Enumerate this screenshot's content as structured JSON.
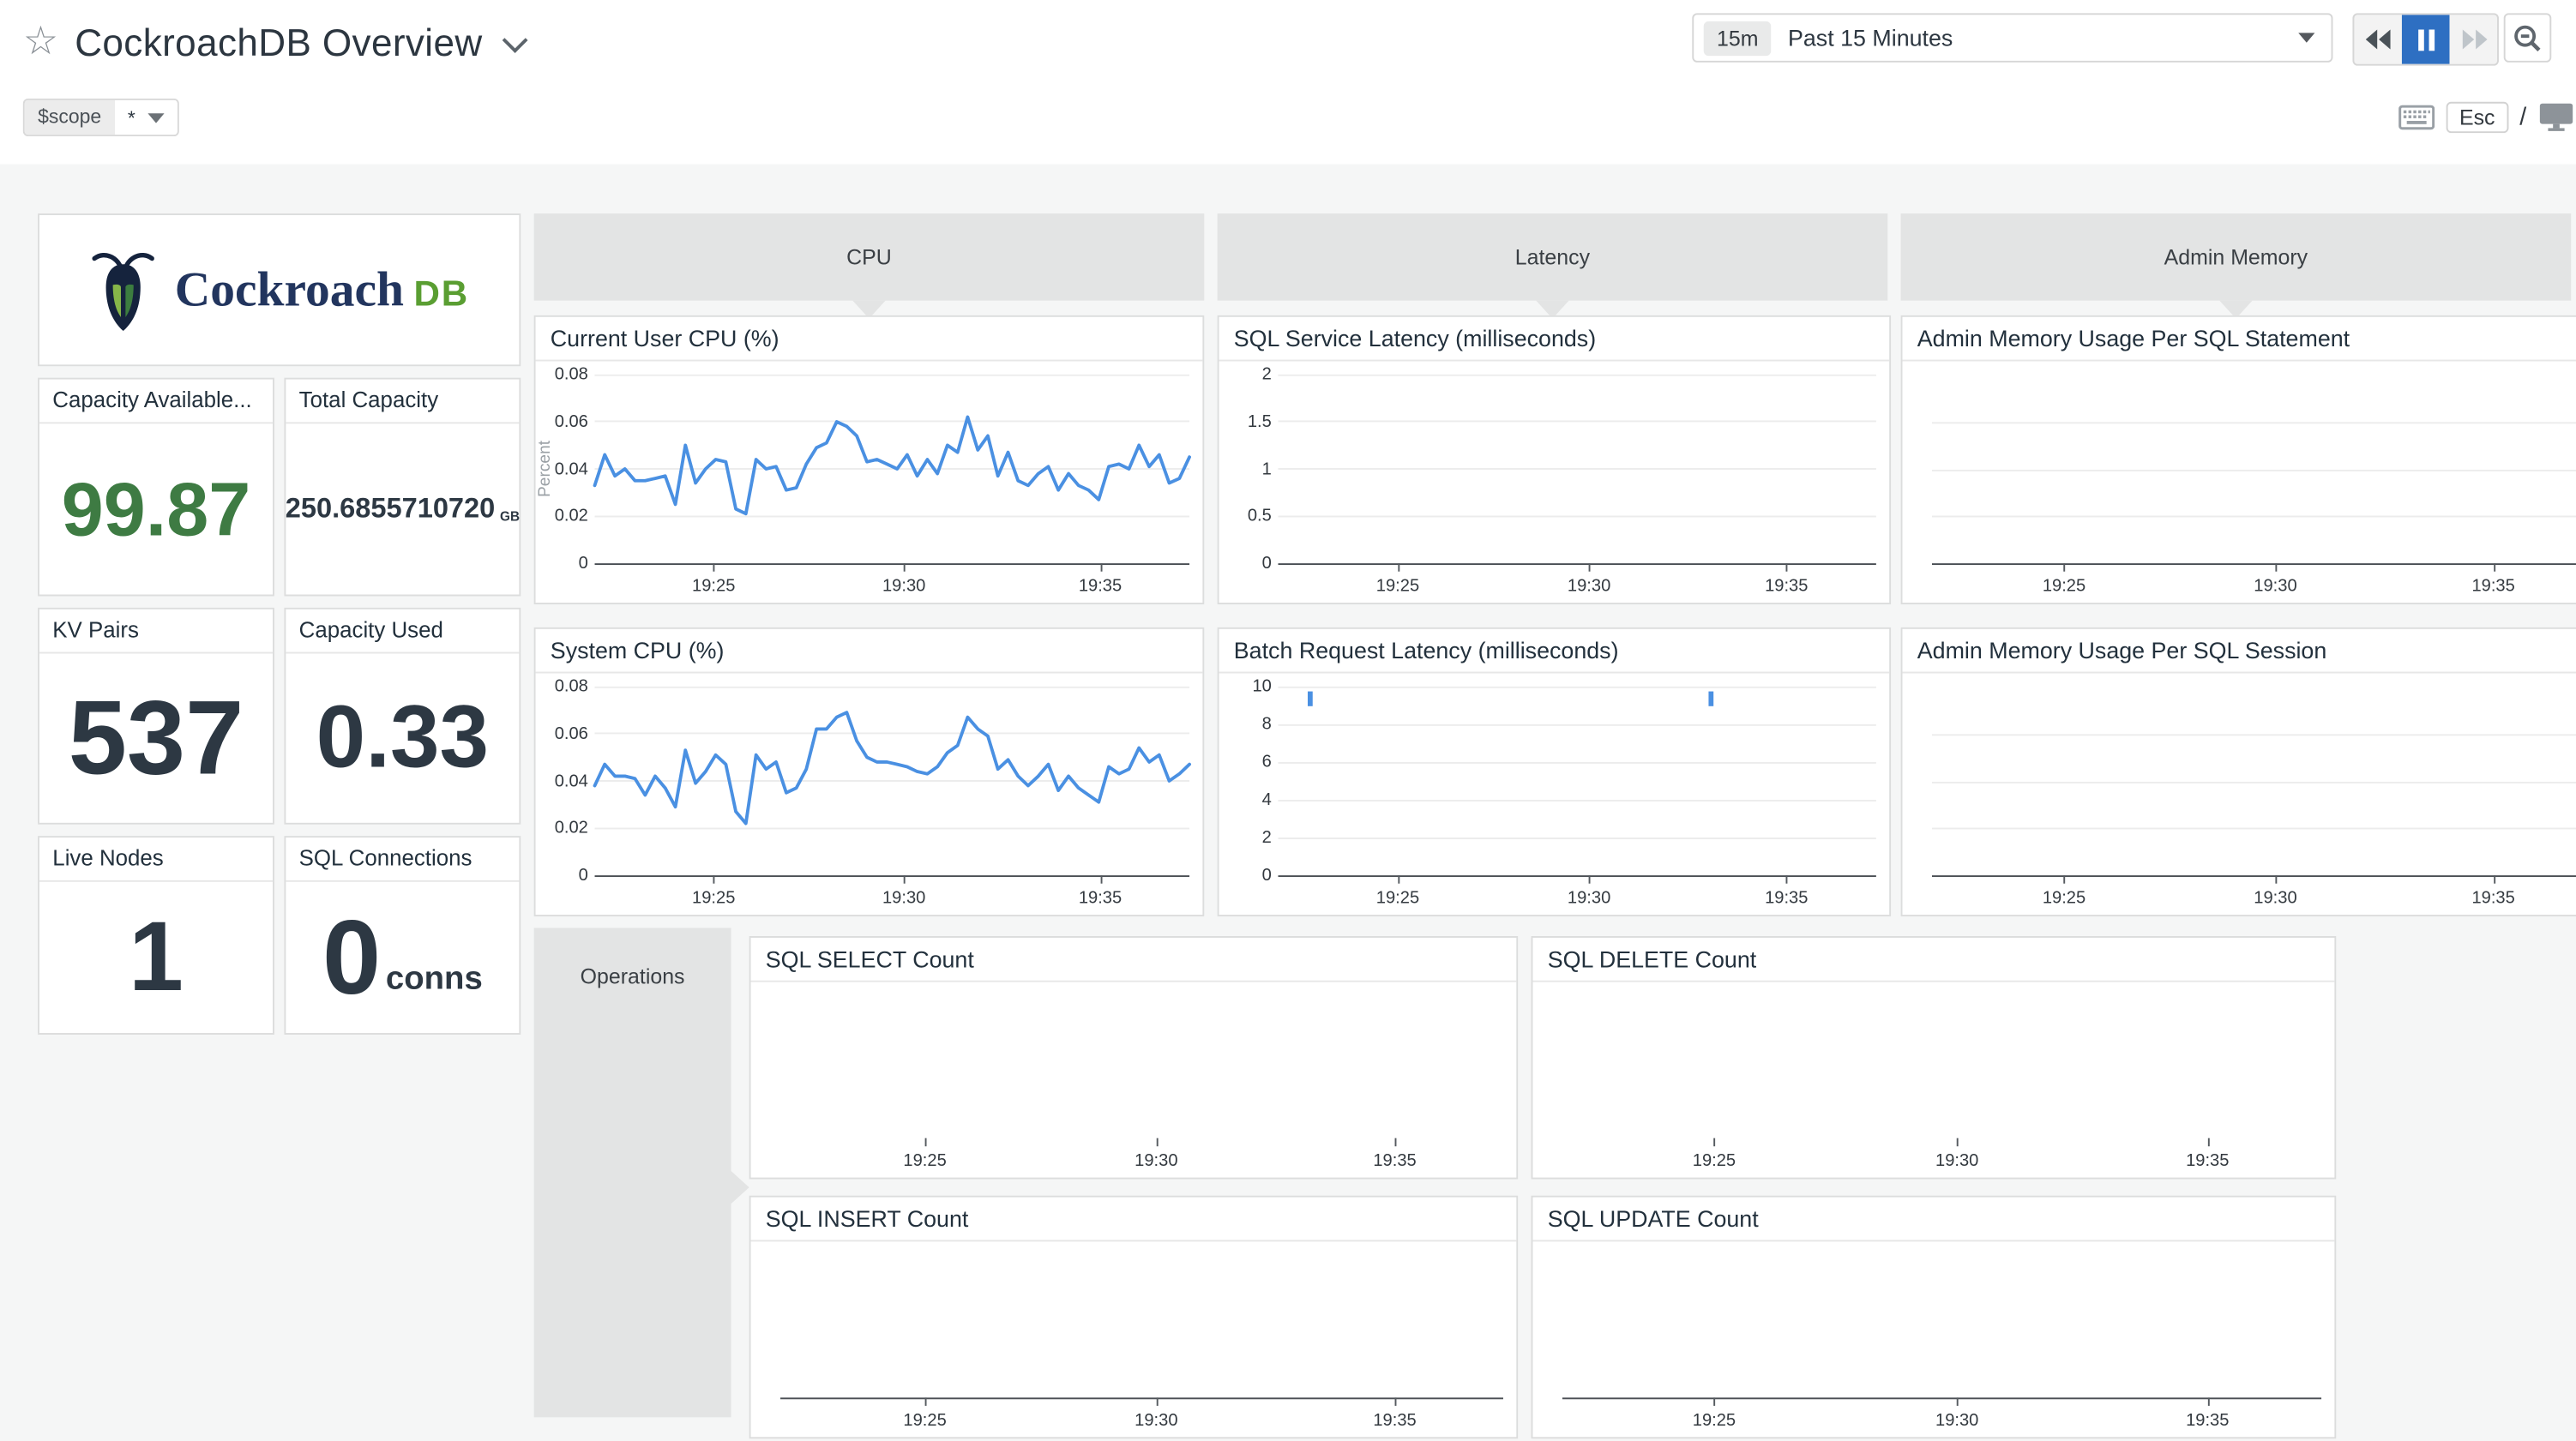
{
  "colors": {
    "accent_blue": "#4a90e2",
    "green": "#3e7b43",
    "navy": "#2d3843",
    "header_gray": "#e3e4e4",
    "pause_blue": "#2e6fc2"
  },
  "header": {
    "title": "CockroachDB Overview",
    "star_icon": "☆"
  },
  "timebar": {
    "range_badge": "15m",
    "range_label": "Past 15 Minutes"
  },
  "scopebar": {
    "var_name": "$scope",
    "var_value": "*",
    "esc_label": "Esc",
    "slash": "/"
  },
  "branding": {
    "wordmark": "Cockroach",
    "wordmark_suffix": "DB"
  },
  "stats": [
    {
      "label": "Capacity Available...",
      "value": "99.87",
      "unit": ""
    },
    {
      "label": "Total Capacity",
      "value": "250.6855710720",
      "unit": "GB"
    },
    {
      "label": "KV Pairs",
      "value": "537",
      "unit": ""
    },
    {
      "label": "Capacity Used",
      "value": "0.33",
      "unit": ""
    },
    {
      "label": "Live Nodes",
      "value": "1",
      "unit": ""
    },
    {
      "label": "SQL Connections",
      "value": "0",
      "unit": "conns"
    }
  ],
  "groups": {
    "cpu": "CPU",
    "latency": "Latency",
    "admin_memory": "Admin Memory",
    "operations": "Operations"
  },
  "chart_data": [
    {
      "id": "current-user-cpu",
      "type": "line",
      "title": "Current User CPU (%)",
      "ylabel": "Percent",
      "ytick_labels": [
        "0",
        "0.02",
        "0.04",
        "0.06",
        "0.08"
      ],
      "ymax": 0.08,
      "xticks": [
        "19:25",
        "19:30",
        "19:35"
      ],
      "baseline": true,
      "gridlines": 0,
      "values": [
        0.033,
        0.046,
        0.037,
        0.04,
        0.035,
        0.035,
        0.036,
        0.037,
        0.025,
        0.05,
        0.034,
        0.04,
        0.044,
        0.043,
        0.023,
        0.021,
        0.044,
        0.04,
        0.041,
        0.031,
        0.032,
        0.042,
        0.049,
        0.051,
        0.06,
        0.058,
        0.054,
        0.043,
        0.044,
        0.042,
        0.04,
        0.046,
        0.037,
        0.044,
        0.038,
        0.05,
        0.047,
        0.062,
        0.048,
        0.054,
        0.037,
        0.047,
        0.035,
        0.033,
        0.038,
        0.041,
        0.031,
        0.038,
        0.033,
        0.031,
        0.027,
        0.041,
        0.042,
        0.04,
        0.05,
        0.041,
        0.046,
        0.034,
        0.036,
        0.045
      ]
    },
    {
      "id": "system-cpu",
      "type": "line",
      "title": "System CPU (%)",
      "ylabel": "",
      "ytick_labels": [
        "0",
        "0.02",
        "0.04",
        "0.06",
        "0.08"
      ],
      "ymax": 0.08,
      "xticks": [
        "19:25",
        "19:30",
        "19:35"
      ],
      "baseline": true,
      "gridlines": 0,
      "values": [
        0.038,
        0.047,
        0.042,
        0.042,
        0.041,
        0.034,
        0.042,
        0.037,
        0.029,
        0.053,
        0.039,
        0.044,
        0.051,
        0.047,
        0.027,
        0.022,
        0.051,
        0.045,
        0.048,
        0.035,
        0.037,
        0.045,
        0.062,
        0.062,
        0.067,
        0.069,
        0.057,
        0.05,
        0.048,
        0.048,
        0.047,
        0.046,
        0.044,
        0.043,
        0.046,
        0.052,
        0.055,
        0.067,
        0.062,
        0.059,
        0.045,
        0.049,
        0.042,
        0.038,
        0.042,
        0.047,
        0.036,
        0.042,
        0.037,
        0.034,
        0.031,
        0.046,
        0.043,
        0.045,
        0.054,
        0.048,
        0.051,
        0.04,
        0.043,
        0.047
      ]
    },
    {
      "id": "sql-service-latency",
      "type": "line",
      "title": "SQL Service Latency (milliseconds)",
      "ylabel": "",
      "ytick_labels": [
        "0",
        "0.5",
        "1",
        "1.5",
        "2"
      ],
      "ymax": 2,
      "xticks": [
        "19:25",
        "19:30",
        "19:35"
      ],
      "baseline": true,
      "gridlines": 0,
      "values": []
    },
    {
      "id": "batch-request-latency",
      "type": "line",
      "title": "Batch Request Latency (milliseconds)",
      "ylabel": "",
      "ytick_labels": [
        "0",
        "2",
        "4",
        "6",
        "8",
        "10"
      ],
      "ymax": 10,
      "xticks": [
        "19:25",
        "19:30",
        "19:35"
      ],
      "baseline": true,
      "gridlines": 0,
      "values": [],
      "marks": [
        {
          "x": 0.05,
          "y": 9.7
        },
        {
          "x": 0.72,
          "y": 9.7
        }
      ]
    },
    {
      "id": "admin-memory-per-statement",
      "type": "line",
      "title": "Admin Memory Usage Per SQL Statement",
      "ylabel": "",
      "ytick_labels": [],
      "ymax": 1,
      "xticks": [
        "19:25",
        "19:30",
        "19:35"
      ],
      "baseline": true,
      "gridlines": 3,
      "values": []
    },
    {
      "id": "admin-memory-per-session",
      "type": "line",
      "title": "Admin Memory Usage Per SQL Session",
      "ylabel": "",
      "ytick_labels": [],
      "ymax": 1,
      "xticks": [
        "19:25",
        "19:30",
        "19:35"
      ],
      "baseline": true,
      "gridlines": 3,
      "values": []
    },
    {
      "id": "sql-select-count",
      "type": "line",
      "title": "SQL SELECT Count",
      "ylabel": "",
      "ytick_labels": [],
      "ymax": 1,
      "xticks": [
        "19:25",
        "19:30",
        "19:35"
      ],
      "baseline": false,
      "gridlines": 0,
      "values": []
    },
    {
      "id": "sql-delete-count",
      "type": "line",
      "title": "SQL DELETE Count",
      "ylabel": "",
      "ytick_labels": [],
      "ymax": 1,
      "xticks": [
        "19:25",
        "19:30",
        "19:35"
      ],
      "baseline": false,
      "gridlines": 0,
      "values": []
    },
    {
      "id": "sql-insert-count",
      "type": "line",
      "title": "SQL INSERT Count",
      "ylabel": "",
      "ytick_labels": [],
      "ymax": 1,
      "xticks": [
        "19:25",
        "19:30",
        "19:35"
      ],
      "baseline": true,
      "gridlines": 0,
      "values": []
    },
    {
      "id": "sql-update-count",
      "type": "line",
      "title": "SQL UPDATE Count",
      "ylabel": "",
      "ytick_labels": [],
      "ymax": 1,
      "xticks": [
        "19:25",
        "19:30",
        "19:35"
      ],
      "baseline": true,
      "gridlines": 0,
      "values": []
    }
  ]
}
